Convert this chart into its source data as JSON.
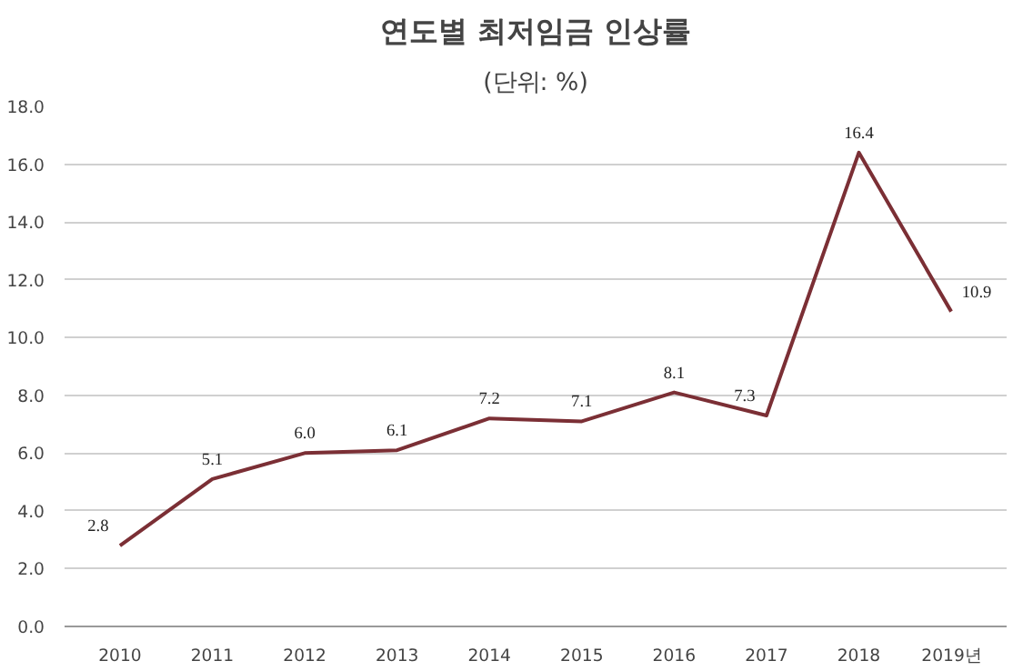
{
  "chart_data": {
    "type": "line",
    "title": "연도별 최저임금 인상률",
    "subtitle": "(단위: %)",
    "categories": [
      "2010",
      "2011",
      "2012",
      "2013",
      "2014",
      "2015",
      "2016",
      "2017",
      "2018",
      "2019년"
    ],
    "series": [
      {
        "color": "#7b2f35",
        "values": [
          2.8,
          5.1,
          6.0,
          6.1,
          7.2,
          7.1,
          8.1,
          7.3,
          16.4,
          10.9
        ],
        "value_labels": [
          "2.8",
          "5.1",
          "6.0",
          "6.1",
          "7.2",
          "7.1",
          "8.1",
          "7.3",
          "16.4",
          "10.9"
        ]
      }
    ],
    "ylim": [
      0,
      18
    ],
    "yticks": [
      {
        "value": 0,
        "label": "0.0"
      },
      {
        "value": 2,
        "label": "2.0"
      },
      {
        "value": 4,
        "label": "4.0"
      },
      {
        "value": 6,
        "label": "6.0"
      },
      {
        "value": 8,
        "label": "8.0"
      },
      {
        "value": 10,
        "label": "10.0"
      },
      {
        "value": 12,
        "label": "12.0"
      },
      {
        "value": 14,
        "label": "14.0"
      },
      {
        "value": 16,
        "label": "16.0"
      },
      {
        "value": 18,
        "label": "18.0"
      }
    ],
    "grid": "y",
    "marker": "none",
    "line_style": "solid"
  }
}
